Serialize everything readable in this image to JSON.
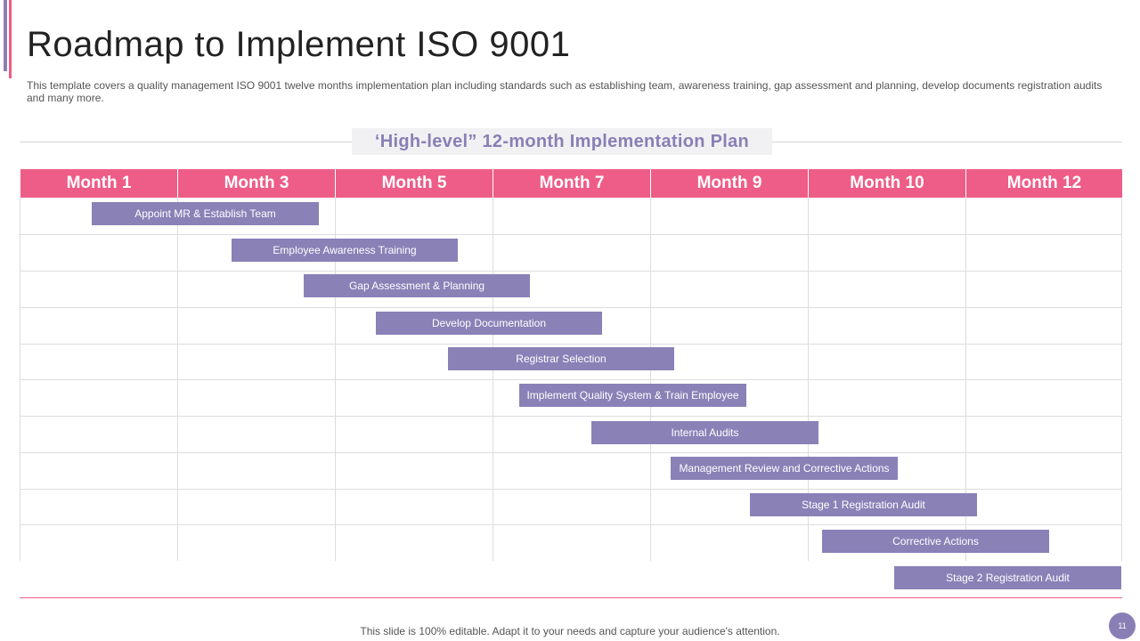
{
  "slide": {
    "title": "Roadmap to Implement ISO 9001",
    "subtitle": "This template covers a quality management ISO 9001 twelve months implementation plan including standards such as establishing team, awareness training, gap assessment and planning, develop documents registration audits and many more.",
    "section_title": "‘High-level” 12-month Implementation Plan",
    "footer": "This slide is 100% editable. Adapt it to your needs and capture your audience's attention.",
    "page_number": "11"
  },
  "months": [
    "Month 1",
    "Month 3",
    "Month 5",
    "Month 7",
    "Month 9",
    "Month 10",
    "Month 12"
  ],
  "tasks": [
    {
      "label": "Appoint MR & Establish Team"
    },
    {
      "label": "Employee Awareness Training"
    },
    {
      "label": "Gap Assessment & Planning"
    },
    {
      "label": "Develop Documentation"
    },
    {
      "label": "Registrar Selection"
    },
    {
      "label": "Implement Quality System & Train Employee"
    },
    {
      "label": "Internal Audits"
    },
    {
      "label": "Management Review and Corrective Actions"
    },
    {
      "label": "Stage 1 Registration Audit"
    },
    {
      "label": "Corrective Actions"
    },
    {
      "label": "Stage 2 Registration Audit"
    }
  ],
  "colors": {
    "header_pink": "#ee5d87",
    "bar_purple": "#8a81b7",
    "accent_purple": "#8a7fb5"
  }
}
